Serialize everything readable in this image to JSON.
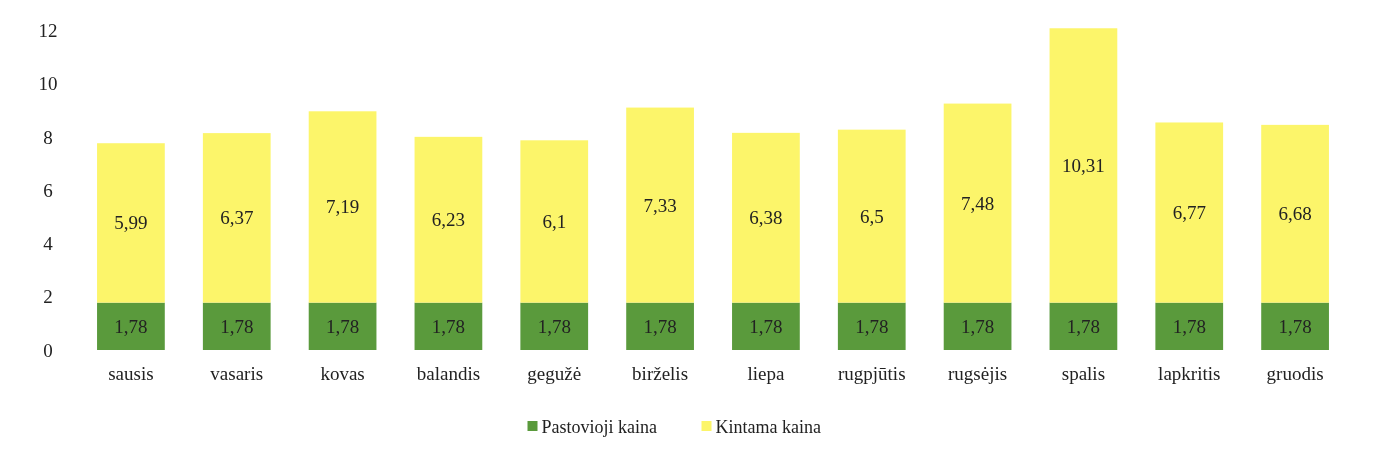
{
  "chart_data": {
    "type": "bar",
    "stacked": true,
    "categories": [
      "sausis",
      "vasaris",
      "kovas",
      "balandis",
      "gegužė",
      "birželis",
      "liepa",
      "rugpjūtis",
      "rugsėjis",
      "spalis",
      "lapkritis",
      "gruodis"
    ],
    "series": [
      {
        "name": "Pastovioji kaina",
        "color": "#5a9a3c",
        "values": [
          1.78,
          1.78,
          1.78,
          1.78,
          1.78,
          1.78,
          1.78,
          1.78,
          1.78,
          1.78,
          1.78,
          1.78
        ],
        "value_labels": [
          "1,78",
          "1,78",
          "1,78",
          "1,78",
          "1,78",
          "1,78",
          "1,78",
          "1,78",
          "1,78",
          "1,78",
          "1,78",
          "1,78"
        ]
      },
      {
        "name": "Kintama kaina",
        "color": "#fcf56a",
        "values": [
          5.99,
          6.37,
          7.19,
          6.23,
          6.1,
          7.33,
          6.38,
          6.5,
          7.48,
          10.31,
          6.77,
          6.68
        ],
        "value_labels": [
          "5,99",
          "6,37",
          "7,19",
          "6,23",
          "6,1",
          "7,33",
          "6,38",
          "6,5",
          "7,48",
          "10,31",
          "6,77",
          "6,68"
        ]
      }
    ],
    "ylim": [
      0,
      12.1
    ],
    "yticks": [
      0,
      2,
      4,
      6,
      8,
      10,
      12
    ],
    "legend": "bottom"
  }
}
